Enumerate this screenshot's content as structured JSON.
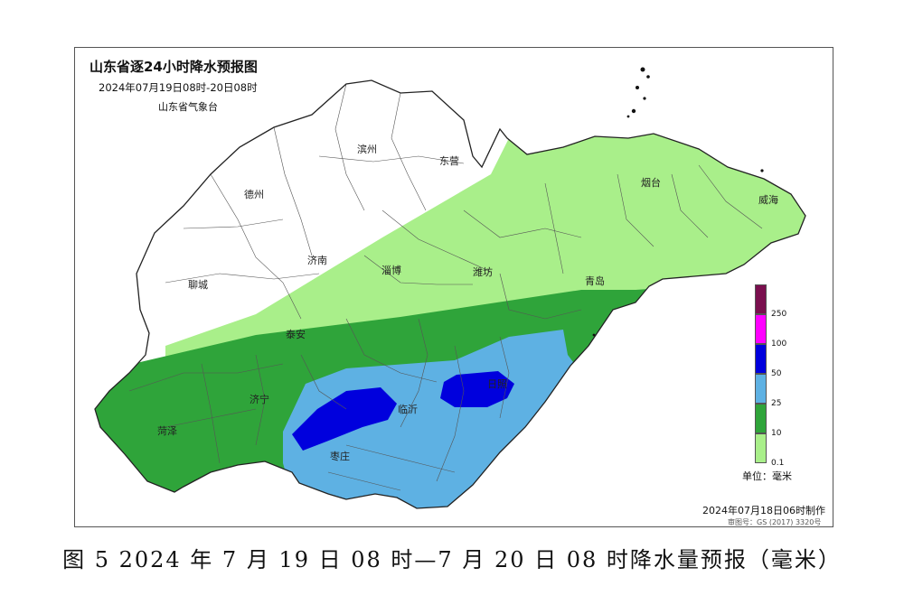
{
  "map": {
    "title": "山东省逐24小时降水预报图",
    "period": "2024年07月19日08时-20日08时",
    "issuer": "山东省气象台",
    "cities": [
      "滨州",
      "东营",
      "德州",
      "烟台",
      "威海",
      "济南",
      "淄博",
      "潍坊",
      "聊城",
      "青岛",
      "泰安",
      "济宁",
      "临沂",
      "菏泽",
      "日照",
      "枣庄"
    ],
    "legend": {
      "ticks": [
        "250",
        "100",
        "50",
        "25",
        "10",
        "0.1"
      ],
      "colors": [
        "#7a0f4e",
        "#ff00ff",
        "#0000dd",
        "#5eb1e3",
        "#2fa43a",
        "#a9ef8a"
      ],
      "unit": "单位：毫米"
    },
    "made_time": "2024年07月18日06时制作",
    "review_no": "审图号：GS (2017) 3320号"
  },
  "caption": "图 5  2024 年 7 月 19 日 08 时—7 月 20 日 08 时降水量预报（毫米）"
}
